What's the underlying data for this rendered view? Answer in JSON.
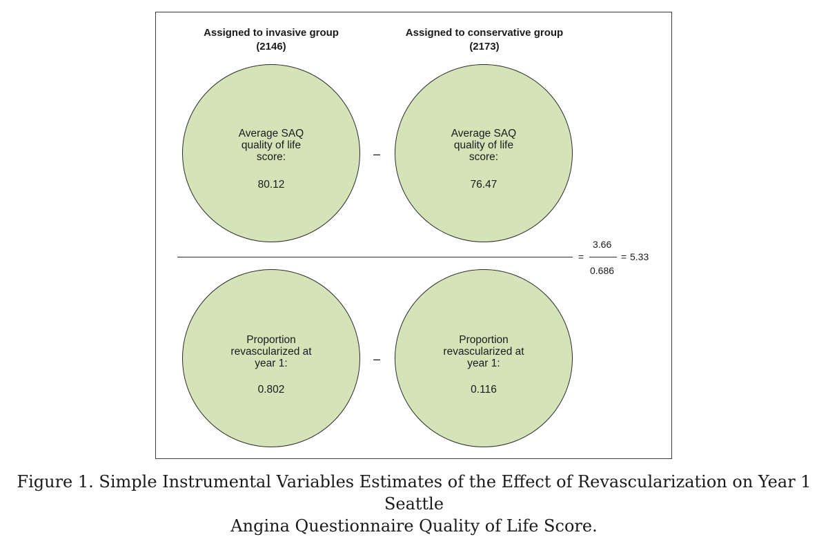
{
  "columns": {
    "left": {
      "title": "Assigned to invasive group",
      "n": "(2146)"
    },
    "right": {
      "title": "Assigned to conservative group",
      "n": "(2173)"
    }
  },
  "numerator": {
    "left": {
      "label_lines": [
        "Average SAQ",
        "quality of life",
        "score:"
      ],
      "value": "80.12"
    },
    "right": {
      "label_lines": [
        "Average SAQ",
        "quality of life",
        "score:"
      ],
      "value": "76.47"
    },
    "operator": "–"
  },
  "denominator": {
    "left": {
      "label_lines": [
        "Proportion",
        "revascularized at",
        "year 1:"
      ],
      "value": "0.802"
    },
    "right": {
      "label_lines": [
        "Proportion",
        "revascularized at",
        "year 1:"
      ],
      "value": "0.116"
    },
    "operator": "–"
  },
  "result": {
    "equals_1": "=",
    "num": "3.66",
    "den": "0.686",
    "equals_2": "=",
    "value": "5.33"
  },
  "caption": {
    "line1": "Figure 1.  Simple Instrumental Variables Estimates of the Effect of Revascularization on Year 1 Seattle",
    "line2": "Angina Questionnaire Quality of Life Score."
  },
  "colors": {
    "circle_fill": "#d4e4b8",
    "stroke": "#2a2a2a"
  }
}
